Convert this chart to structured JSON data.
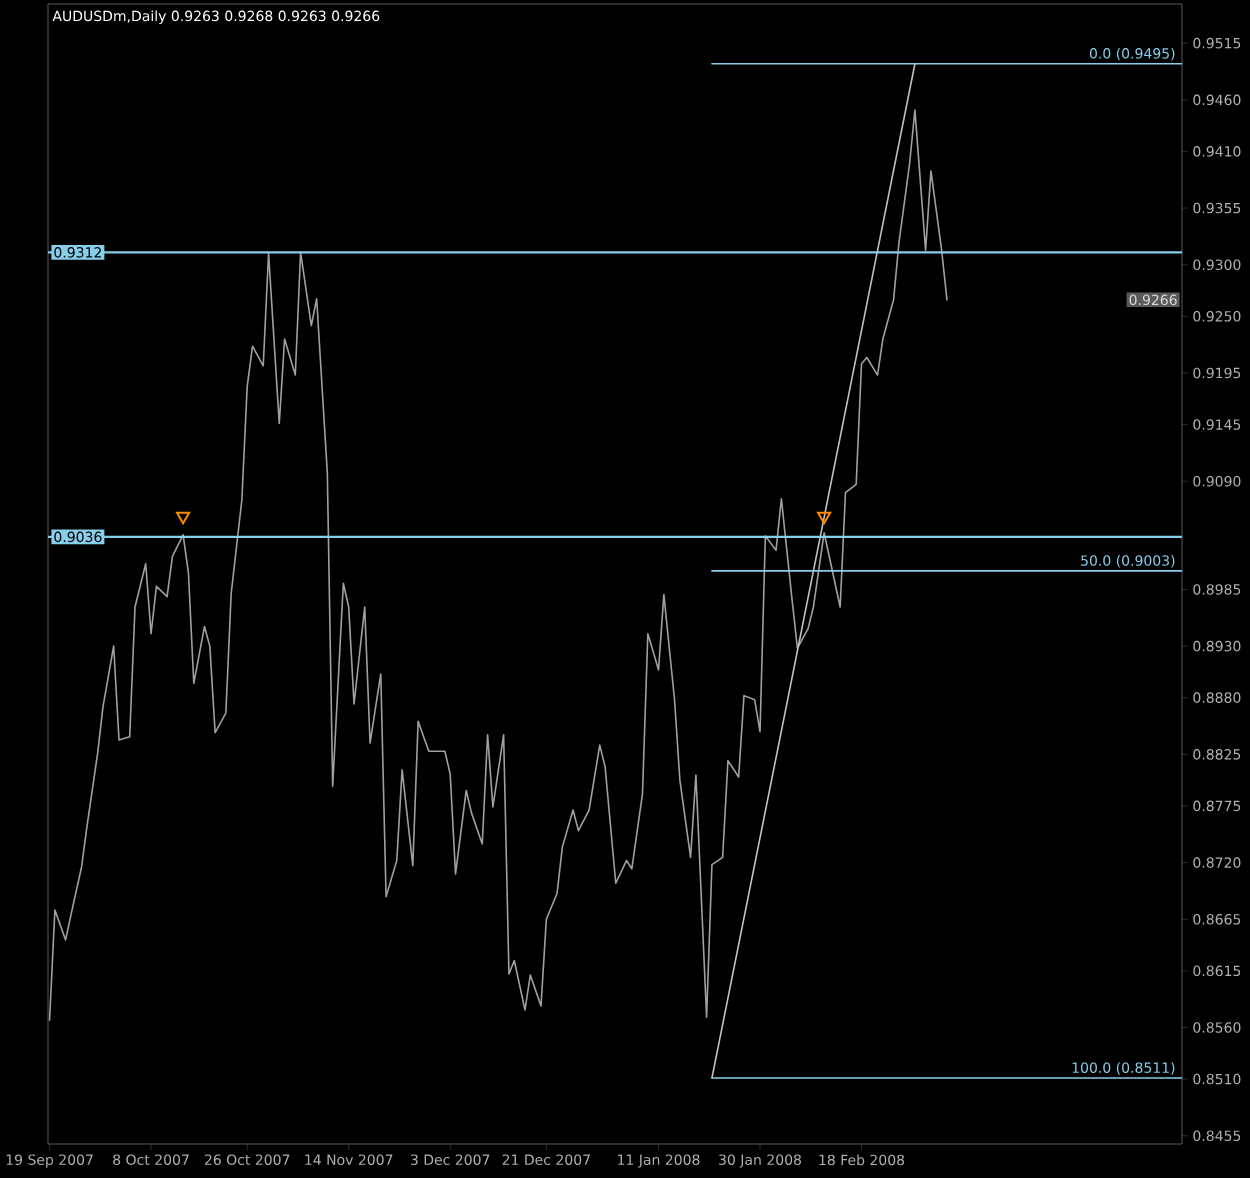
{
  "chart_data": {
    "type": "line",
    "title": "AUDUSDm,Daily 0.9263 0.9268 0.9263 0.9266",
    "xlim": [
      "2007-09-18T17:00",
      "2008-04-18"
    ],
    "xticks": [
      {
        "value": "2007-09-19",
        "label": "19 Sep 2007"
      },
      {
        "value": "2007-10-08",
        "label": "8 Oct 2007"
      },
      {
        "value": "2007-10-26",
        "label": "26 Oct 2007"
      },
      {
        "value": "2007-11-14",
        "label": "14 Nov 2007"
      },
      {
        "value": "2007-12-03",
        "label": "3 Dec 2007"
      },
      {
        "value": "2007-12-21",
        "label": "21 Dec 2007"
      },
      {
        "value": "2008-01-11",
        "label": "11 Jan 2008"
      },
      {
        "value": "2008-01-30",
        "label": "30 Jan 2008"
      },
      {
        "value": "2008-02-18",
        "label": "18 Feb 2008"
      }
    ],
    "ylim": [
      0.8447,
      0.9553
    ],
    "yticks": [
      0.9515,
      {
        "value": 0.946,
        "label": "0.9460"
      },
      {
        "value": 0.941,
        "label": "0.9410"
      },
      0.9355,
      {
        "value": 0.93,
        "label": "0.9300"
      },
      {
        "value": 0.925,
        "label": "0.9250"
      },
      0.9195,
      0.9145,
      {
        "value": 0.909,
        "label": "0.9090"
      },
      0.8985,
      {
        "value": 0.893,
        "label": "0.8930"
      },
      {
        "value": 0.888,
        "label": "0.8880"
      },
      0.8825,
      0.8775,
      {
        "value": 0.872,
        "label": "0.8720"
      },
      0.8665,
      0.8615,
      {
        "value": 0.856,
        "label": "0.8560"
      },
      {
        "value": 0.851,
        "label": "0.8510"
      },
      0.8455
    ],
    "series": [
      {
        "color": "#a0a0a0",
        "x": [
          "2007-09-19",
          "2007-09-20",
          "2007-09-22",
          "2007-09-23",
          "2007-09-25",
          "2007-09-26",
          "2007-09-28",
          "2007-09-29",
          "2007-10-01",
          "2007-10-02",
          "2007-10-04",
          "2007-10-05",
          "2007-10-07",
          "2007-10-08",
          "2007-10-09",
          "2007-10-11",
          "2007-10-12",
          "2007-10-14",
          "2007-10-15",
          "2007-10-16",
          "2007-10-18",
          "2007-10-19",
          "2007-10-20",
          "2007-10-22",
          "2007-10-23",
          "2007-10-25",
          "2007-10-26",
          "2007-10-27",
          "2007-10-29",
          "2007-10-30",
          "2007-11-01",
          "2007-11-02",
          "2007-11-04",
          "2007-11-05",
          "2007-11-07",
          "2007-11-08",
          "2007-11-10",
          "2007-11-11",
          "2007-11-13",
          "2007-11-14",
          "2007-11-15",
          "2007-11-17",
          "2007-11-18",
          "2007-11-20",
          "2007-11-21",
          "2007-11-23",
          "2007-11-24",
          "2007-11-26",
          "2007-11-27",
          "2007-11-29",
          "2007-11-30",
          "2007-12-02",
          "2007-12-03",
          "2007-12-04",
          "2007-12-06",
          "2007-12-07",
          "2007-12-09",
          "2007-12-10",
          "2007-12-11",
          "2007-12-13",
          "2007-12-14",
          "2007-12-15",
          "2007-12-17",
          "2007-12-18",
          "2007-12-20",
          "2007-12-21",
          "2007-12-23",
          "2007-12-24",
          "2007-12-26",
          "2007-12-27",
          "2007-12-29",
          "2007-12-31",
          "2008-01-01",
          "2008-01-03",
          "2008-01-05",
          "2008-01-06",
          "2008-01-08",
          "2008-01-09",
          "2008-01-11",
          "2008-01-12",
          "2008-01-14",
          "2008-01-15",
          "2008-01-17",
          "2008-01-18",
          "2008-01-20",
          "2008-01-21",
          "2008-01-23",
          "2008-01-24",
          "2008-01-26",
          "2008-01-27",
          "2008-01-29",
          "2008-01-30",
          "2008-01-31",
          "2008-02-02",
          "2008-02-03",
          "2008-02-05",
          "2008-02-06",
          "2008-02-08",
          "2008-02-09",
          "2008-02-11",
          "2008-02-12",
          "2008-02-14",
          "2008-02-15",
          "2008-02-17",
          "2008-02-18",
          "2008-02-19",
          "2008-02-21",
          "2008-02-22",
          "2008-02-24",
          "2008-02-25",
          "2008-02-27",
          "2008-02-28",
          "2008-03-01",
          "2008-03-02",
          "2008-03-04",
          "2008-03-05"
        ],
        "values": [
          0.8567,
          0.8674,
          0.8645,
          0.8669,
          0.8716,
          0.8755,
          0.8826,
          0.8871,
          0.893,
          0.8839,
          0.8842,
          0.8968,
          0.901,
          0.8942,
          0.8988,
          0.8978,
          0.9017,
          0.9038,
          0.9001,
          0.8894,
          0.8949,
          0.893,
          0.8846,
          0.8865,
          0.8981,
          0.9072,
          0.9182,
          0.9221,
          0.9202,
          0.9311,
          0.9146,
          0.9228,
          0.9193,
          0.9312,
          0.9241,
          0.9267,
          0.9098,
          0.8794,
          0.8991,
          0.8968,
          0.8874,
          0.8968,
          0.8836,
          0.8903,
          0.8687,
          0.8722,
          0.881,
          0.8717,
          0.8857,
          0.8828,
          0.8828,
          0.8828,
          0.8806,
          0.8709,
          0.879,
          0.8768,
          0.8738,
          0.8844,
          0.8774,
          0.8844,
          0.8612,
          0.8625,
          0.8577,
          0.8611,
          0.8581,
          0.8665,
          0.869,
          0.8735,
          0.8771,
          0.8751,
          0.8771,
          0.8834,
          0.8813,
          0.87,
          0.8722,
          0.8714,
          0.8787,
          0.8942,
          0.8907,
          0.898,
          0.8878,
          0.88,
          0.8725,
          0.8805,
          0.857,
          0.8718,
          0.8725,
          0.8819,
          0.8803,
          0.8882,
          0.8878,
          0.8847,
          0.9037,
          0.9023,
          0.9073,
          0.8975,
          0.8928,
          0.8947,
          0.8968,
          0.904,
          0.9016,
          0.8968,
          0.9079,
          0.9087,
          0.9204,
          0.921,
          0.9193,
          0.9228,
          0.9266,
          0.9321,
          0.9398,
          0.945,
          0.9314,
          0.9391,
          0.9314,
          0.9266
        ]
      },
      {
        "color": "#c0c0c0",
        "x": [
          "2008-01-21",
          "2008-02-28"
        ],
        "values": [
          0.8511,
          0.9495
        ]
      },
      {
        "name": "0.0 (0.9495)",
        "color": "#87ceeb",
        "x": [
          "2008-01-21",
          "2008-04-18"
        ],
        "values": [
          0.9495,
          0.9495
        ]
      },
      {
        "name": "50.0 (0.9003)",
        "color": "#87ceeb",
        "x": [
          "2008-01-21",
          "2008-04-18"
        ],
        "values": [
          0.9003,
          0.9003
        ]
      },
      {
        "name": "100.0 (0.8511)",
        "color": "#87ceeb",
        "x": [
          "2008-01-21",
          "2008-04-18"
        ],
        "values": [
          0.8511,
          0.8511
        ]
      },
      {
        "type": "scatter",
        "color": "#ff8c00",
        "marker": "triangle",
        "x": [
          "2007-10-14",
          "2008-02-11"
        ],
        "values": [
          0.9056,
          0.9056
        ]
      }
    ],
    "ref_lines": [
      {
        "axis": "y",
        "value": 0.9312,
        "label": "0.9312",
        "color": "#87ceeb"
      },
      {
        "axis": "y",
        "value": 0.9036,
        "label": "0.9036",
        "color": "#87ceeb"
      }
    ],
    "annotations": [
      "0.9266"
    ]
  }
}
